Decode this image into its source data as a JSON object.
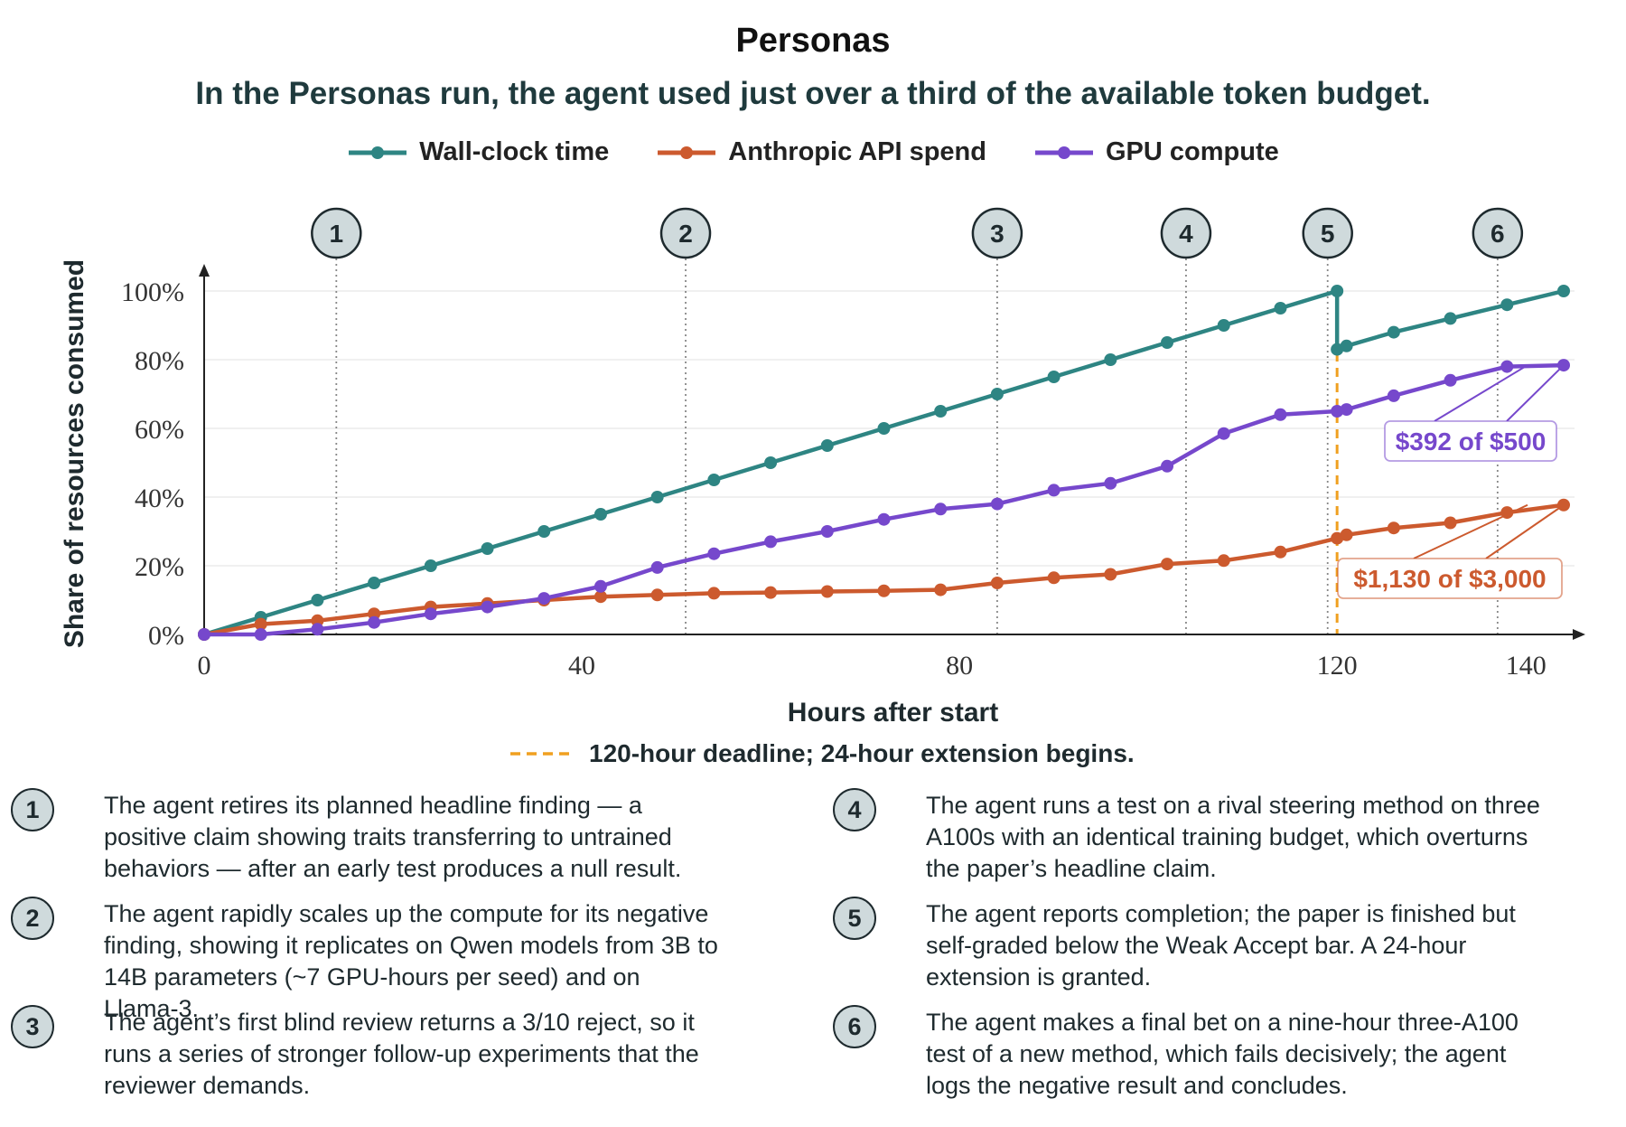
{
  "title": "Personas",
  "subtitle": "In the Personas run, the agent used just over a third of the available token budget.",
  "legend": [
    {
      "label": "Wall-clock time",
      "color": "#2e8583"
    },
    {
      "label": "Anthropic API spend",
      "color": "#cc5a2e"
    },
    {
      "label": "GPU compute",
      "color": "#7648cc"
    }
  ],
  "deadline_note": "120-hour deadline; 24-hour extension begins.",
  "chart_data": {
    "type": "line",
    "xlabel": "Hours after start",
    "ylabel": "Share of resources consumed",
    "xlim": [
      0,
      144
    ],
    "ylim": [
      0,
      100
    ],
    "x_ticks": [
      0,
      40,
      80,
      120,
      140
    ],
    "y_ticks": [
      0,
      20,
      40,
      60,
      80,
      100
    ],
    "y_tick_labels": [
      "0%",
      "20%",
      "40%",
      "60%",
      "80%",
      "100%"
    ],
    "deadline_x": 120,
    "series": [
      {
        "name": "Wall-clock time",
        "color": "#2e8583",
        "x": [
          0,
          6,
          12,
          18,
          24,
          30,
          36,
          42,
          48,
          54,
          60,
          66,
          72,
          78,
          84,
          90,
          96,
          102,
          108,
          114,
          120,
          120,
          121,
          126,
          132,
          138,
          144
        ],
        "y": [
          0,
          5,
          10,
          15,
          20,
          25,
          30,
          35,
          40,
          45,
          50,
          55,
          60,
          65,
          70,
          75,
          80,
          85,
          90,
          95,
          100,
          83,
          84,
          88,
          92,
          96,
          100
        ]
      },
      {
        "name": "Anthropic API spend",
        "color": "#cc5a2e",
        "x": [
          0,
          6,
          12,
          18,
          24,
          30,
          36,
          42,
          48,
          54,
          60,
          66,
          72,
          78,
          84,
          90,
          96,
          102,
          108,
          114,
          120,
          121,
          126,
          132,
          138,
          144
        ],
        "y": [
          0,
          3,
          4,
          6,
          8,
          9,
          10,
          11,
          11.5,
          12,
          12.2,
          12.5,
          12.7,
          13,
          15,
          16.5,
          17.5,
          20.5,
          21.5,
          24,
          28,
          29,
          31,
          32.5,
          35.5,
          37.7
        ]
      },
      {
        "name": "GPU compute",
        "color": "#7648cc",
        "x": [
          0,
          6,
          12,
          18,
          24,
          30,
          36,
          42,
          48,
          54,
          60,
          66,
          72,
          78,
          84,
          90,
          96,
          102,
          108,
          114,
          120,
          121,
          126,
          132,
          138,
          144
        ],
        "y": [
          0,
          0,
          1.5,
          3.5,
          6,
          8,
          10.5,
          14,
          19.5,
          23.5,
          27,
          30,
          33.5,
          36.5,
          38,
          42,
          44,
          49,
          58.5,
          64,
          65,
          65.5,
          69.5,
          74,
          78,
          78.4
        ]
      }
    ],
    "end_labels": [
      {
        "text": "$392 of $500",
        "series": "GPU compute",
        "color": "#7648cc"
      },
      {
        "text": "$1,130 of $3,000",
        "series": "Anthropic API spend",
        "color": "#cc5a2e"
      }
    ],
    "annotations": [
      {
        "label": "1",
        "x": 14
      },
      {
        "label": "2",
        "x": 51
      },
      {
        "label": "3",
        "x": 84
      },
      {
        "label": "4",
        "x": 104
      },
      {
        "label": "5",
        "x": 119
      },
      {
        "label": "6",
        "x": 137
      }
    ]
  },
  "notes": [
    {
      "num": "1",
      "text": "The agent retires its planned headline finding — a positive claim showing traits transferring to untrained behaviors — after an early test produces a null result."
    },
    {
      "num": "2",
      "text": "The agent rapidly scales up the compute for its negative finding, showing it replicates on Qwen models from 3B to 14B parameters (~7 GPU-hours per seed) and on Llama-3."
    },
    {
      "num": "3",
      "text": "The agent’s first blind review returns a 3/10 reject, so it runs a series of stronger follow-up experiments that the reviewer demands."
    },
    {
      "num": "4",
      "text": "The agent runs a test on a rival steering method on three A100s with an identical training budget, which overturns the paper’s headline claim."
    },
    {
      "num": "5",
      "text": "The agent reports completion; the paper is finished but self-graded below the Weak Accept bar. A 24-hour extension is granted."
    },
    {
      "num": "6",
      "text": "The agent makes a final bet on a nine-hour three-A100 test of a new method, which fails decisively; the agent logs the negative result and concludes."
    }
  ]
}
